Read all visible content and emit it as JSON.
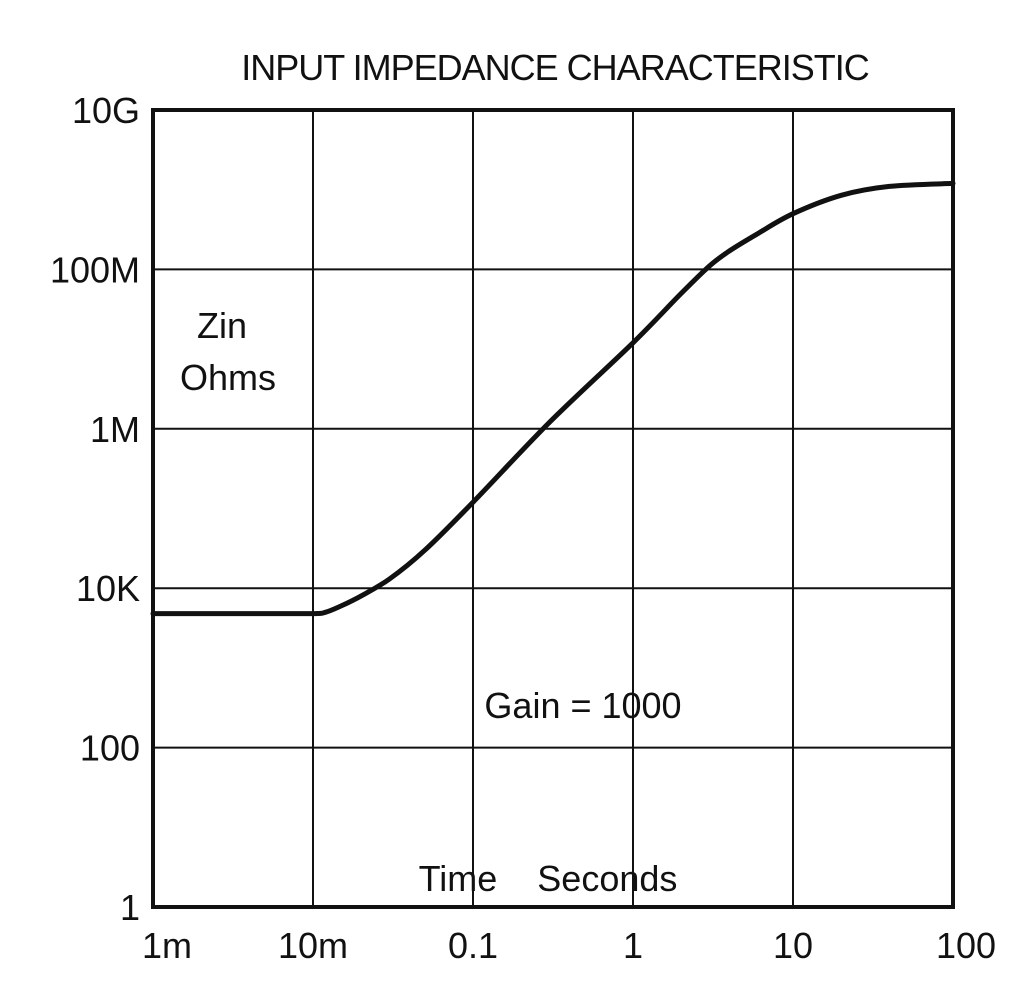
{
  "chart_data": {
    "type": "line",
    "title": "INPUT IMPEDANCE CHARACTERISTIC",
    "xlabel": "Time    Seconds",
    "ylabel": "Zin Ohms",
    "ylabel_lines": [
      "Zin",
      "Ohms"
    ],
    "annotation": "Gain = 1000",
    "x_scale": "log",
    "y_scale": "log",
    "xlim": [
      0.001,
      100
    ],
    "ylim": [
      1,
      10000000000
    ],
    "x_ticks": [
      {
        "value": 0.001,
        "label": "1m"
      },
      {
        "value": 0.01,
        "label": "10m"
      },
      {
        "value": 0.1,
        "label": "0.1"
      },
      {
        "value": 1,
        "label": "1"
      },
      {
        "value": 10,
        "label": "10"
      },
      {
        "value": 100,
        "label": "100"
      }
    ],
    "y_ticks": [
      {
        "value": 1,
        "label": "1"
      },
      {
        "value": 100,
        "label": "100"
      },
      {
        "value": 10000,
        "label": "10K"
      },
      {
        "value": 1000000,
        "label": "1M"
      },
      {
        "value": 100000000,
        "label": "100M"
      },
      {
        "value": 10000000000,
        "label": "10G"
      }
    ],
    "grid": true,
    "series": [
      {
        "x": [
          0.001,
          0.005,
          0.01,
          0.012,
          0.015,
          0.02,
          0.03,
          0.05,
          0.1,
          0.3,
          1,
          2,
          3,
          4,
          6,
          10,
          20,
          40,
          100
        ],
        "y": [
          4800,
          4800,
          4800,
          5000,
          6000,
          8000,
          13000,
          30000,
          120000,
          1200000,
          12000000,
          50000000,
          110000000,
          170000000,
          280000000,
          500000000,
          850000000,
          1100000000,
          1200000000
        ]
      }
    ]
  }
}
